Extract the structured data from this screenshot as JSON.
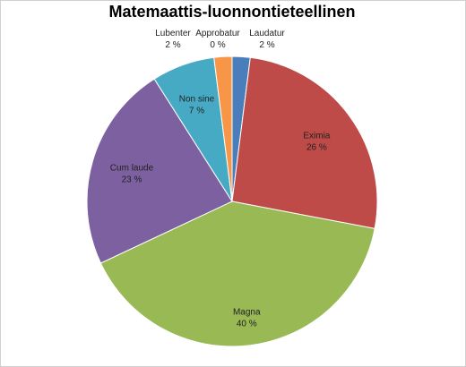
{
  "chart_data": {
    "type": "pie",
    "title": "Matemaattis-luonnontieteellinen",
    "categories": [
      "Laudatur",
      "Eximia",
      "Magna",
      "Cum laude",
      "Non sine",
      "Lubenter",
      "Approbatur"
    ],
    "values": [
      2,
      26,
      40,
      23,
      7,
      2,
      0
    ],
    "value_labels": [
      "2 %",
      "26 %",
      "40 %",
      "23 %",
      "7 %",
      "2 %",
      "0 %"
    ],
    "colors": [
      "#4a7ebb",
      "#be4b48",
      "#98b954",
      "#7d60a0",
      "#46aac5",
      "#f79646",
      "#b9cde5"
    ]
  }
}
